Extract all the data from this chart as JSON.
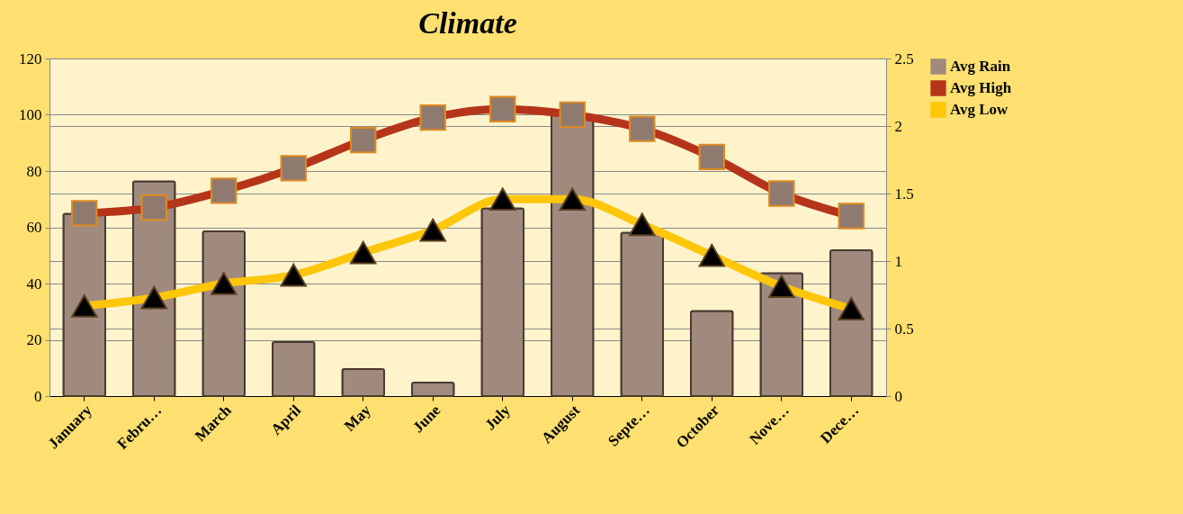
{
  "chart_data": {
    "type": "line",
    "title": "Climate",
    "categories": [
      "January",
      "Febru…",
      "March",
      "April",
      "May",
      "June",
      "July",
      "August",
      "Septe…",
      "October",
      "Nove…",
      "Dece…"
    ],
    "series": [
      {
        "name": "Avg Rain",
        "type": "bar",
        "axis": "y2",
        "color": "#a08a7e",
        "values": [
          1.35,
          1.59,
          1.22,
          0.4,
          0.2,
          0.1,
          1.39,
          2.08,
          1.21,
          0.63,
          0.91,
          1.08
        ]
      },
      {
        "name": "Avg High",
        "color": "#b5341a",
        "marker": "square",
        "values": [
          65,
          67,
          73,
          81,
          91,
          99,
          102,
          100,
          95,
          85,
          72,
          64
        ]
      },
      {
        "name": "Avg Low",
        "color": "#ffc60a",
        "marker": "triangle",
        "values": [
          32,
          35,
          40,
          43,
          51,
          59,
          70,
          70,
          61,
          50,
          39,
          31
        ]
      }
    ],
    "ylim": [
      0,
      120
    ],
    "yticks": [
      0,
      20,
      40,
      60,
      80,
      100,
      120
    ],
    "y2lim": [
      0,
      2.5
    ],
    "y2ticks": [
      0,
      0.5,
      1,
      1.5,
      2,
      2.5
    ],
    "grid": "y",
    "legend": "right"
  }
}
